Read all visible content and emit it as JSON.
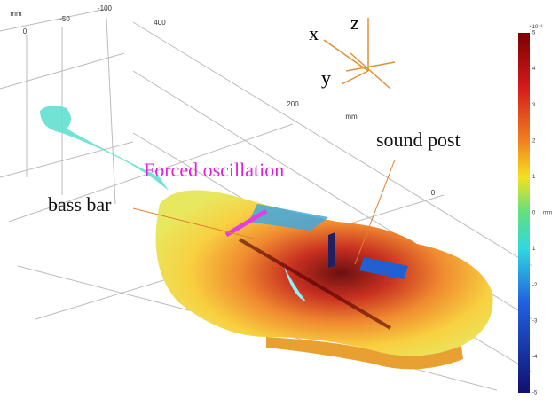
{
  "axes": {
    "unit_left": "mm",
    "ticks_left": [
      "0",
      "-50",
      "-100"
    ],
    "ticks_mid": [
      "400",
      "200",
      "0"
    ],
    "unit_mid": "mm"
  },
  "triad": {
    "x": "x",
    "y": "y",
    "z": "z"
  },
  "annotations": {
    "forced": "Forced oscillation",
    "bass_bar": "bass bar",
    "sound_post": "sound post"
  },
  "colorbar": {
    "exponent": "×10⁻³",
    "unit": "mm",
    "ticks": [
      "5",
      "4",
      "3",
      "2",
      "1",
      "0",
      "1",
      "-2",
      "-3",
      "-4",
      "-5"
    ]
  }
}
